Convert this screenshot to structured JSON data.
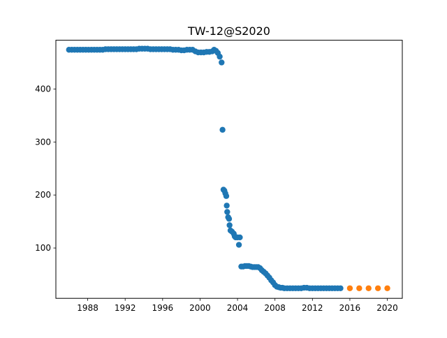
{
  "chart_data": {
    "type": "scatter",
    "title": "TW-12@S2020",
    "xlabel": "",
    "ylabel": "",
    "xlim": [
      1984.6,
      2021.6
    ],
    "ylim": [
      5,
      492
    ],
    "x_ticks": [
      1988,
      1992,
      1996,
      2000,
      2004,
      2008,
      2012,
      2016,
      2020
    ],
    "y_ticks": [
      100,
      200,
      300,
      400
    ],
    "grid": false,
    "legend": "none",
    "series": [
      {
        "color": "#1f77b4",
        "points": [
          [
            1986.0,
            474
          ],
          [
            1986.3,
            474
          ],
          [
            1986.6,
            474
          ],
          [
            1986.9,
            474
          ],
          [
            1987.2,
            474
          ],
          [
            1987.5,
            474
          ],
          [
            1987.8,
            474
          ],
          [
            1988.1,
            474
          ],
          [
            1988.4,
            474
          ],
          [
            1988.7,
            474
          ],
          [
            1989.0,
            474
          ],
          [
            1989.3,
            474
          ],
          [
            1989.6,
            474
          ],
          [
            1989.9,
            475
          ],
          [
            1990.2,
            475
          ],
          [
            1990.5,
            475
          ],
          [
            1990.8,
            475
          ],
          [
            1991.1,
            475
          ],
          [
            1991.4,
            475
          ],
          [
            1991.7,
            475
          ],
          [
            1992.0,
            475
          ],
          [
            1992.3,
            475
          ],
          [
            1992.6,
            475
          ],
          [
            1992.9,
            475
          ],
          [
            1993.2,
            475
          ],
          [
            1993.5,
            476
          ],
          [
            1993.8,
            476
          ],
          [
            1994.1,
            476
          ],
          [
            1994.4,
            476
          ],
          [
            1994.7,
            475
          ],
          [
            1995.0,
            475
          ],
          [
            1995.3,
            475
          ],
          [
            1995.6,
            475
          ],
          [
            1995.9,
            475
          ],
          [
            1996.2,
            475
          ],
          [
            1996.5,
            475
          ],
          [
            1996.8,
            475
          ],
          [
            1997.1,
            474
          ],
          [
            1997.4,
            474
          ],
          [
            1997.7,
            474
          ],
          [
            1998.0,
            473
          ],
          [
            1998.3,
            473
          ],
          [
            1998.6,
            474
          ],
          [
            1998.9,
            474
          ],
          [
            1999.2,
            474
          ],
          [
            1999.5,
            471
          ],
          [
            1999.8,
            469
          ],
          [
            2000.1,
            469
          ],
          [
            2000.4,
            469
          ],
          [
            2000.7,
            470
          ],
          [
            2001.0,
            470
          ],
          [
            2001.3,
            471
          ],
          [
            2001.5,
            474
          ],
          [
            2001.7,
            472
          ],
          [
            2001.9,
            468
          ],
          [
            2002.1,
            461
          ],
          [
            2002.3,
            450
          ],
          [
            2002.4,
            323
          ],
          [
            2002.5,
            210
          ],
          [
            2002.6,
            208
          ],
          [
            2002.7,
            203
          ],
          [
            2002.8,
            198
          ],
          [
            2002.85,
            180
          ],
          [
            2002.9,
            168
          ],
          [
            2003.0,
            158
          ],
          [
            2003.1,
            155
          ],
          [
            2003.15,
            143
          ],
          [
            2003.25,
            133
          ],
          [
            2003.4,
            131
          ],
          [
            2003.6,
            127
          ],
          [
            2003.7,
            122
          ],
          [
            2003.8,
            120
          ],
          [
            2004.0,
            120
          ],
          [
            2004.15,
            106
          ],
          [
            2004.25,
            120
          ],
          [
            2004.4,
            65
          ],
          [
            2004.6,
            65
          ],
          [
            2004.8,
            66
          ],
          [
            2005.0,
            66
          ],
          [
            2005.2,
            66
          ],
          [
            2005.4,
            65
          ],
          [
            2005.6,
            64
          ],
          [
            2005.8,
            64
          ],
          [
            2006.0,
            64
          ],
          [
            2006.2,
            64
          ],
          [
            2006.4,
            62
          ],
          [
            2006.6,
            58
          ],
          [
            2006.8,
            55
          ],
          [
            2007.0,
            52
          ],
          [
            2007.2,
            48
          ],
          [
            2007.4,
            44
          ],
          [
            2007.6,
            39
          ],
          [
            2007.8,
            35
          ],
          [
            2008.0,
            30
          ],
          [
            2008.2,
            27
          ],
          [
            2008.4,
            26
          ],
          [
            2008.6,
            25
          ],
          [
            2008.8,
            25
          ],
          [
            2009.0,
            24
          ],
          [
            2009.3,
            24
          ],
          [
            2009.6,
            24
          ],
          [
            2009.9,
            24
          ],
          [
            2010.2,
            24
          ],
          [
            2010.5,
            24
          ],
          [
            2010.8,
            24
          ],
          [
            2011.1,
            25
          ],
          [
            2011.4,
            25
          ],
          [
            2011.7,
            24
          ],
          [
            2012.0,
            24
          ],
          [
            2012.3,
            24
          ],
          [
            2012.6,
            24
          ],
          [
            2012.9,
            24
          ],
          [
            2013.2,
            24
          ],
          [
            2013.5,
            24
          ],
          [
            2013.8,
            24
          ],
          [
            2014.1,
            24
          ],
          [
            2014.4,
            24
          ],
          [
            2014.7,
            24
          ],
          [
            2015.0,
            24
          ]
        ]
      },
      {
        "color": "#ff7f0e",
        "points": [
          [
            2016.0,
            24
          ],
          [
            2017.0,
            24
          ],
          [
            2018.0,
            24
          ],
          [
            2019.0,
            24
          ],
          [
            2020.0,
            24
          ]
        ]
      }
    ]
  }
}
